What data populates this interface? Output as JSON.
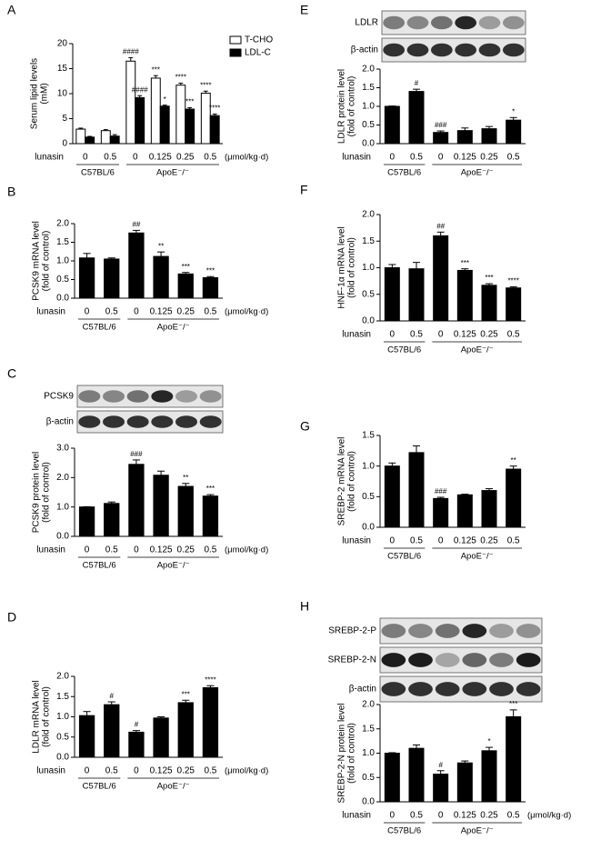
{
  "chart_data": [
    {
      "panel": "A",
      "type": "bar",
      "ylabel": [
        "Serum lipid levels",
        "(mM)"
      ],
      "x_label": "lunasin",
      "unit": "(μmol/kg·d)",
      "categories": [
        "0",
        "0.5",
        "0",
        "0.125",
        "0.25",
        "0.5"
      ],
      "groups": [
        "C57BL/6",
        "ApoE⁻/⁻"
      ],
      "ylim": [
        0,
        20
      ],
      "yticks": [
        0,
        5,
        10,
        15,
        20
      ],
      "legend": "top-right",
      "series": [
        {
          "name": "T-CHO",
          "color": "#ffffff",
          "values": [
            2.9,
            2.6,
            16.5,
            13.1,
            11.7,
            10.1
          ],
          "errors": [
            0.2,
            0.2,
            0.7,
            0.5,
            0.4,
            0.4
          ],
          "annotations": [
            null,
            null,
            "####",
            "***",
            "****",
            "****"
          ]
        },
        {
          "name": "LDL-C",
          "color": "#000000",
          "values": [
            1.3,
            1.5,
            9.2,
            7.5,
            6.9,
            5.6
          ],
          "errors": [
            0.15,
            0.3,
            0.4,
            0.2,
            0.3,
            0.3
          ],
          "annotations": [
            null,
            null,
            "####",
            "*",
            "***",
            "****"
          ]
        }
      ]
    },
    {
      "panel": "B",
      "type": "bar",
      "ylabel": [
        "PCSK9 mRNA level",
        "(fold of control)"
      ],
      "x_label": "lunasin",
      "unit": "(μmol/kg·d)",
      "categories": [
        "0",
        "0.5",
        "0",
        "0.125",
        "0.25",
        "0.5"
      ],
      "groups": [
        "C57BL/6",
        "ApoE⁻/⁻"
      ],
      "ylim": [
        0,
        2
      ],
      "yticks": [
        {
          "value": 0,
          "label": "0.0"
        },
        {
          "value": 0.5,
          "label": "0.5"
        },
        {
          "value": 1,
          "label": "1.0"
        },
        {
          "value": 1.5,
          "label": "1.5"
        },
        {
          "value": 2,
          "label": "2.0"
        }
      ],
      "color": "#000000",
      "values": [
        1.08,
        1.05,
        1.75,
        1.12,
        0.65,
        0.55
      ],
      "errors": [
        0.12,
        0.03,
        0.07,
        0.12,
        0.04,
        0.03
      ],
      "annotations": [
        null,
        null,
        "##",
        "**",
        "***",
        "***"
      ]
    },
    {
      "panel": "C",
      "type": "bar",
      "blots": [
        "PCSK9",
        "β-actin"
      ],
      "ylabel": [
        "PCSK9 protein level",
        "(fold of control)"
      ],
      "x_label": "lunasin",
      "unit": "(μmol/kg·d)",
      "categories": [
        "0",
        "0.5",
        "0",
        "0.125",
        "0.25",
        "0.5"
      ],
      "groups": [
        "C57BL/6",
        "ApoE⁻/⁻"
      ],
      "ylim": [
        0,
        3
      ],
      "yticks": [
        {
          "value": 0,
          "label": "0.0"
        },
        {
          "value": 1,
          "label": "1.0"
        },
        {
          "value": 2,
          "label": "2.0"
        },
        {
          "value": 3,
          "label": "3.0"
        }
      ],
      "color": "#000000",
      "values": [
        1.0,
        1.12,
        2.45,
        2.08,
        1.7,
        1.37
      ],
      "errors": [
        0.01,
        0.05,
        0.15,
        0.14,
        0.1,
        0.05
      ],
      "annotations": [
        null,
        null,
        "###",
        null,
        "**",
        "***"
      ]
    },
    {
      "panel": "D",
      "type": "bar",
      "ylabel": [
        "LDLR mRNA level",
        "(fold of control)"
      ],
      "x_label": "lunasin",
      "unit": "(μmol/kg·d)",
      "categories": [
        "0",
        "0.5",
        "0",
        "0.125",
        "0.25",
        "0.5"
      ],
      "groups": [
        "C57BL/6",
        "ApoE⁻/⁻"
      ],
      "ylim": [
        0,
        2
      ],
      "yticks": [
        {
          "value": 0,
          "label": "0.0"
        },
        {
          "value": 0.5,
          "label": "0.5"
        },
        {
          "value": 1,
          "label": "1.0"
        },
        {
          "value": 1.5,
          "label": "1.5"
        },
        {
          "value": 2,
          "label": "2.0"
        }
      ],
      "color": "#000000",
      "values": [
        1.03,
        1.3,
        0.62,
        0.97,
        1.35,
        1.72
      ],
      "errors": [
        0.1,
        0.07,
        0.04,
        0.03,
        0.06,
        0.05
      ],
      "annotations": [
        null,
        "#",
        "#",
        null,
        "***",
        "****"
      ]
    },
    {
      "panel": "E",
      "type": "bar",
      "blots": [
        "LDLR",
        "β-actin"
      ],
      "ylabel": [
        "LDLR protein level",
        "(fold of control)"
      ],
      "x_label": "lunasin",
      "categories": [
        "0",
        "0.5",
        "0",
        "0.125",
        "0.25",
        "0.5"
      ],
      "groups": [
        "C57BL/6",
        "ApoE⁻/⁻"
      ],
      "ylim": [
        0,
        2
      ],
      "yticks": [
        {
          "value": 0,
          "label": "0.0"
        },
        {
          "value": 0.5,
          "label": "0.5"
        },
        {
          "value": 1,
          "label": "1.0"
        },
        {
          "value": 1.5,
          "label": "1.5"
        },
        {
          "value": 2,
          "label": "2.0"
        }
      ],
      "color": "#000000",
      "values": [
        1.0,
        1.4,
        0.3,
        0.35,
        0.4,
        0.63
      ],
      "errors": [
        0.01,
        0.06,
        0.04,
        0.07,
        0.06,
        0.07
      ],
      "annotations": [
        null,
        "#",
        "###",
        null,
        null,
        "*"
      ]
    },
    {
      "panel": "F",
      "type": "bar",
      "ylabel": [
        "HNF-1α mRNA level",
        "(fold of control)"
      ],
      "x_label": "lunasin",
      "categories": [
        "0",
        "0.5",
        "0",
        "0.125",
        "0.25",
        "0.5"
      ],
      "groups": [
        "C57BL/6",
        "ApoE⁻/⁻"
      ],
      "ylim": [
        0,
        2
      ],
      "yticks": [
        {
          "value": 0,
          "label": "0.0"
        },
        {
          "value": 0.5,
          "label": "0.5"
        },
        {
          "value": 1,
          "label": "1.0"
        },
        {
          "value": 1.5,
          "label": "1.5"
        },
        {
          "value": 2,
          "label": "2.0"
        }
      ],
      "color": "#000000",
      "values": [
        1.0,
        0.98,
        1.6,
        0.95,
        0.67,
        0.62
      ],
      "errors": [
        0.06,
        0.12,
        0.07,
        0.03,
        0.03,
        0.02
      ],
      "annotations": [
        null,
        null,
        "##",
        "***",
        "***",
        "****"
      ]
    },
    {
      "panel": "G",
      "type": "bar",
      "ylabel": [
        "SREBP-2 mRNA level",
        "(fold of control)"
      ],
      "x_label": "lunasin",
      "categories": [
        "0",
        "0.5",
        "0",
        "0.125",
        "0.25",
        "0.5"
      ],
      "groups": [
        "C57BL/6",
        "ApoE⁻/⁻"
      ],
      "ylim": [
        0,
        1.5
      ],
      "yticks": [
        {
          "value": 0,
          "label": "0.0"
        },
        {
          "value": 0.5,
          "label": "0.5"
        },
        {
          "value": 1,
          "label": "1.0"
        },
        {
          "value": 1.5,
          "label": "1.5"
        }
      ],
      "color": "#000000",
      "values": [
        1.0,
        1.22,
        0.47,
        0.53,
        0.6,
        0.95
      ],
      "errors": [
        0.05,
        0.11,
        0.02,
        0.01,
        0.03,
        0.05
      ],
      "annotations": [
        null,
        null,
        "###",
        null,
        null,
        "**"
      ]
    },
    {
      "panel": "H",
      "type": "bar",
      "blots": [
        "SREBP-2-P",
        "SREBP-2-N",
        "β-actin"
      ],
      "ylabel": [
        "SREBP-2-N protein level",
        "(fold of control)"
      ],
      "x_label": "lunasin",
      "unit": "(μmol/kg·d)",
      "categories": [
        "0",
        "0.5",
        "0",
        "0.125",
        "0.25",
        "0.5"
      ],
      "groups": [
        "C57BL/6",
        "ApoE⁻/⁻"
      ],
      "ylim": [
        0,
        2
      ],
      "yticks": [
        {
          "value": 0,
          "label": "0.0"
        },
        {
          "value": 0.5,
          "label": "0.5"
        },
        {
          "value": 1,
          "label": "1.0"
        },
        {
          "value": 1.5,
          "label": "1.5"
        },
        {
          "value": 2,
          "label": "2.0"
        }
      ],
      "color": "#000000",
      "values": [
        1.0,
        1.1,
        0.57,
        0.8,
        1.05,
        1.75
      ],
      "errors": [
        0.01,
        0.07,
        0.07,
        0.04,
        0.07,
        0.14
      ],
      "annotations": [
        null,
        null,
        "#",
        null,
        "*",
        "***"
      ]
    }
  ]
}
